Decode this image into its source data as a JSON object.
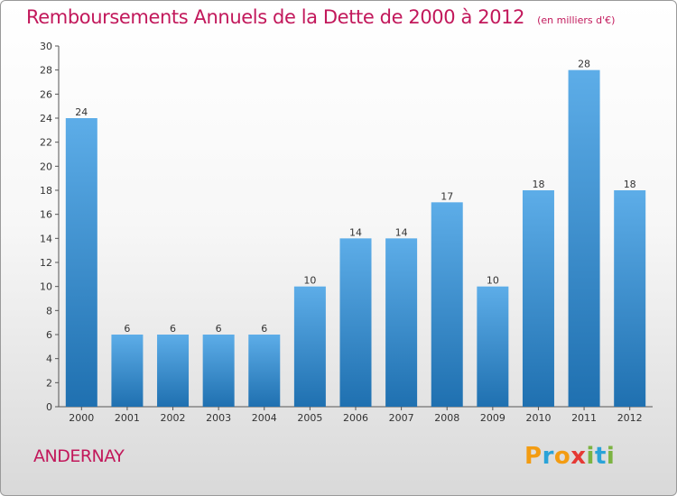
{
  "title": "Remboursements Annuels de la Dette de 2000 à 2012",
  "unit": "(en milliers d'€)",
  "commune": "ANDERNAY",
  "logo": {
    "letters": [
      "P",
      "r",
      "o",
      "x",
      "i",
      "t",
      "i"
    ],
    "colors": [
      "#f39c12",
      "#2aa3d8",
      "#f39c12",
      "#e53935",
      "#7cb342",
      "#2aa3d8",
      "#7cb342"
    ]
  },
  "colors": {
    "bar_top": "#5dade8",
    "bar_bottom": "#1f70b0",
    "title": "#c2185b"
  },
  "chart_data": {
    "type": "bar",
    "categories": [
      "2000",
      "2001",
      "2002",
      "2003",
      "2004",
      "2005",
      "2006",
      "2007",
      "2008",
      "2009",
      "2010",
      "2011",
      "2012"
    ],
    "values": [
      24,
      6,
      6,
      6,
      6,
      10,
      14,
      14,
      17,
      10,
      18,
      28,
      18
    ],
    "ylim": [
      0,
      30
    ],
    "yticks": [
      0,
      2,
      4,
      6,
      8,
      10,
      12,
      14,
      16,
      18,
      20,
      22,
      24,
      26,
      28,
      30
    ],
    "grid": false,
    "legend": "none"
  }
}
